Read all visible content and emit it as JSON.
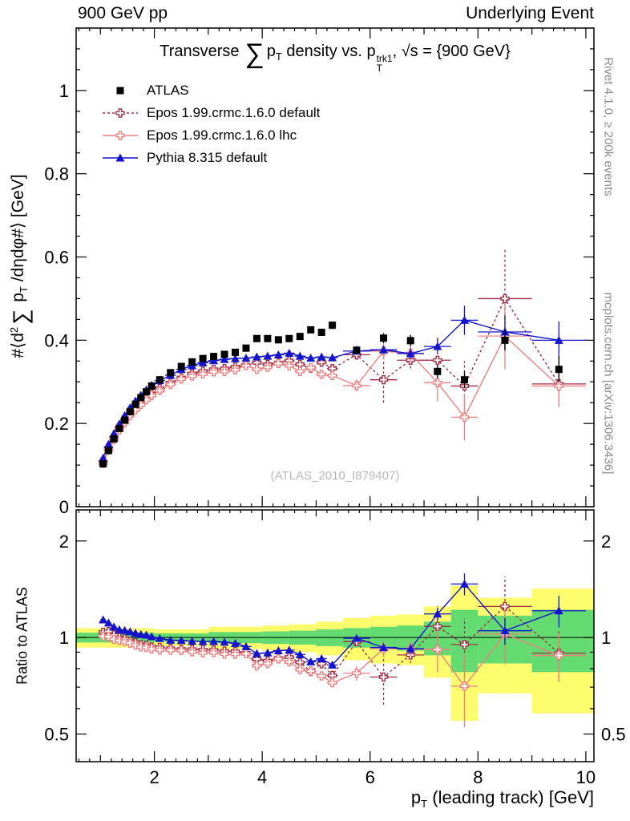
{
  "header": {
    "left": "900 GeV pp",
    "right": "Underlying Event"
  },
  "side_notes": {
    "right_top": "Rivet 4.1.0, ≥ 200k events",
    "right_bottom": "mcplots.cern.ch [arXiv:1306.3436]"
  },
  "watermark": "(ATLAS_2010_I879407)",
  "title": {
    "lead": "Transverse",
    "sum": "∑",
    "p1": "p",
    "p1_sub": "T",
    "mid": " density vs. p",
    "p2_sup": "trk1",
    "p2_sub": "T",
    "tail": ", √s = {900 GeV}"
  },
  "axis_labels": {
    "y_main": {
      "pre": "#⟨d",
      "sup": "2",
      "sum": "∑",
      "p": " p",
      "sub": "T",
      "post": " /dηdφ#⟩ [GeV]"
    },
    "y_ratio": "Ratio to ATLAS",
    "x": {
      "p": "p",
      "sub": "T",
      "post": " (leading track) [GeV]"
    }
  },
  "axes": {
    "x_range": [
      0.55,
      10.15
    ],
    "x_major_ticks": [
      2,
      4,
      6,
      8,
      10
    ],
    "main_y_range": [
      0,
      1.15
    ],
    "main_y_ticks": [
      0,
      0.2,
      0.4,
      0.6,
      0.8,
      1
    ],
    "ratio_y_range": [
      0.41,
      2.5
    ],
    "ratio_y_scale": "log",
    "ratio_y_ticks": [
      0.5,
      1,
      2
    ],
    "ratio_y_minor_ticks": [
      0.6,
      0.7,
      0.8,
      0.9
    ]
  },
  "chart_data": {
    "type": "line",
    "title": "Transverse ∑ p_T density vs. p_T^trk1, √s = {900 GeV}",
    "xlabel": "p_T (leading track) [GeV]",
    "ylabel": "#⟨d² ∑ p_T /dηdφ#⟩ [GeV]",
    "ratio_ylabel": "Ratio to ATLAS",
    "legend_position": "top-left",
    "x": [
      1.05,
      1.15,
      1.25,
      1.35,
      1.45,
      1.55,
      1.65,
      1.75,
      1.85,
      1.95,
      2.1,
      2.3,
      2.5,
      2.7,
      2.9,
      3.1,
      3.3,
      3.5,
      3.7,
      3.9,
      4.1,
      4.3,
      4.5,
      4.7,
      4.9,
      5.1,
      5.3,
      5.75,
      6.25,
      6.75,
      7.25,
      7.75,
      8.5,
      9.5
    ],
    "x_halfwidth": [
      0.05,
      0.05,
      0.05,
      0.05,
      0.05,
      0.05,
      0.05,
      0.05,
      0.05,
      0.05,
      0.1,
      0.1,
      0.1,
      0.1,
      0.1,
      0.1,
      0.1,
      0.1,
      0.1,
      0.1,
      0.1,
      0.1,
      0.1,
      0.1,
      0.1,
      0.1,
      0.1,
      0.25,
      0.25,
      0.25,
      0.25,
      0.25,
      0.5,
      0.5
    ],
    "series": [
      {
        "name": "ATLAS",
        "marker": "square",
        "line": "none",
        "color": "#000000",
        "values": [
          0.103,
          0.135,
          0.163,
          0.188,
          0.208,
          0.228,
          0.246,
          0.262,
          0.276,
          0.29,
          0.305,
          0.322,
          0.337,
          0.348,
          0.356,
          0.361,
          0.366,
          0.371,
          0.381,
          0.404,
          0.404,
          0.401,
          0.404,
          0.409,
          0.425,
          0.419,
          0.436,
          0.376,
          0.405,
          0.399,
          0.325,
          0.305,
          0.4,
          0.33
        ],
        "errors": [
          0.003,
          0.003,
          0.003,
          0.003,
          0.003,
          0.003,
          0.003,
          0.003,
          0.003,
          0.003,
          0.003,
          0.003,
          0.004,
          0.004,
          0.004,
          0.004,
          0.005,
          0.005,
          0.005,
          0.006,
          0.006,
          0.006,
          0.007,
          0.007,
          0.008,
          0.008,
          0.009,
          0.01,
          0.012,
          0.014,
          0.016,
          0.02,
          0.025,
          0.03
        ]
      },
      {
        "name": "Epos 1.99.crmc.1.6.0 default",
        "marker": "cross",
        "line": "dotted",
        "color": "#a02c46",
        "values": [
          0.107,
          0.141,
          0.166,
          0.188,
          0.206,
          0.222,
          0.237,
          0.249,
          0.261,
          0.271,
          0.284,
          0.298,
          0.31,
          0.32,
          0.326,
          0.33,
          0.332,
          0.336,
          0.341,
          0.346,
          0.342,
          0.346,
          0.351,
          0.342,
          0.333,
          0.347,
          0.332,
          0.365,
          0.305,
          0.352,
          0.352,
          0.29,
          0.5,
          0.295
        ],
        "errors": [
          0.002,
          0.002,
          0.002,
          0.002,
          0.002,
          0.002,
          0.002,
          0.002,
          0.002,
          0.002,
          0.002,
          0.002,
          0.003,
          0.003,
          0.003,
          0.003,
          0.003,
          0.003,
          0.004,
          0.004,
          0.004,
          0.004,
          0.005,
          0.005,
          0.006,
          0.007,
          0.008,
          0.012,
          0.055,
          0.02,
          0.055,
          0.06,
          0.12,
          0.055
        ]
      },
      {
        "name": "Epos 1.99.crmc.1.6.0 lhc",
        "marker": "cross",
        "line": "solid",
        "color": "#f08080",
        "values": [
          0.104,
          0.136,
          0.161,
          0.184,
          0.202,
          0.219,
          0.233,
          0.245,
          0.257,
          0.267,
          0.279,
          0.294,
          0.307,
          0.314,
          0.319,
          0.324,
          0.325,
          0.329,
          0.339,
          0.33,
          0.335,
          0.344,
          0.339,
          0.325,
          0.334,
          0.318,
          0.315,
          0.291,
          0.374,
          0.368,
          0.298,
          0.215,
          0.41,
          0.29
        ],
        "errors": [
          0.002,
          0.002,
          0.002,
          0.002,
          0.002,
          0.002,
          0.002,
          0.002,
          0.002,
          0.002,
          0.002,
          0.002,
          0.003,
          0.003,
          0.003,
          0.003,
          0.003,
          0.003,
          0.004,
          0.004,
          0.004,
          0.004,
          0.005,
          0.005,
          0.006,
          0.007,
          0.008,
          0.015,
          0.02,
          0.02,
          0.045,
          0.055,
          0.08,
          0.05
        ]
      },
      {
        "name": "Pythia 8.315 default",
        "marker": "triangle",
        "line": "solid",
        "color": "#1414cc",
        "values": [
          0.117,
          0.15,
          0.176,
          0.199,
          0.219,
          0.238,
          0.254,
          0.268,
          0.281,
          0.292,
          0.303,
          0.316,
          0.33,
          0.339,
          0.346,
          0.351,
          0.354,
          0.356,
          0.357,
          0.36,
          0.362,
          0.365,
          0.369,
          0.362,
          0.357,
          0.36,
          0.358,
          0.374,
          0.377,
          0.368,
          0.385,
          0.448,
          0.42,
          0.4
        ],
        "errors": [
          0.002,
          0.002,
          0.002,
          0.002,
          0.002,
          0.002,
          0.002,
          0.002,
          0.002,
          0.002,
          0.002,
          0.002,
          0.002,
          0.002,
          0.003,
          0.003,
          0.003,
          0.003,
          0.003,
          0.003,
          0.004,
          0.004,
          0.004,
          0.004,
          0.005,
          0.005,
          0.006,
          0.008,
          0.01,
          0.013,
          0.018,
          0.035,
          0.04,
          0.045
        ]
      }
    ],
    "ratio_reference": "ATLAS",
    "ratio_bands": {
      "edges": [
        0.55,
        2,
        3,
        4,
        4.5,
        5,
        5.5,
        6,
        6.5,
        7,
        7.5,
        8,
        9,
        10.15
      ],
      "yellow_halfwidth": [
        0.07,
        0.06,
        0.08,
        0.09,
        0.1,
        0.12,
        0.15,
        0.17,
        0.18,
        0.25,
        0.45,
        0.33,
        0.42
      ],
      "green_halfwidth": [
        0.035,
        0.03,
        0.04,
        0.045,
        0.05,
        0.06,
        0.07,
        0.08,
        0.09,
        0.12,
        0.22,
        0.17,
        0.22
      ],
      "yellow_color": "#fcfc6d",
      "green_color": "#63db71"
    }
  }
}
